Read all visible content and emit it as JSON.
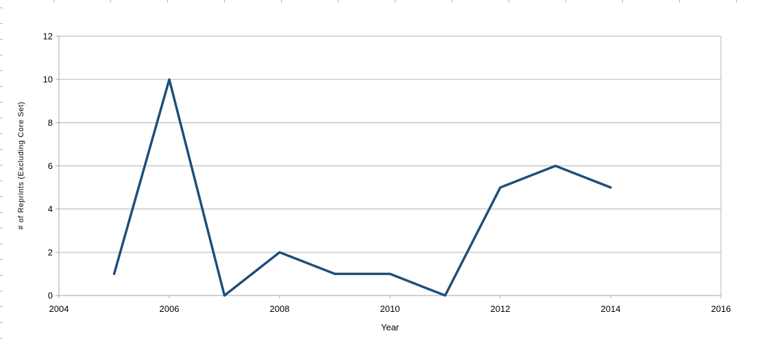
{
  "chart_data": {
    "type": "line",
    "title": "",
    "xlabel": "Year",
    "ylabel": "# of Reprints (Excluding Core Set)",
    "x": [
      2005,
      2006,
      2007,
      2008,
      2009,
      2010,
      2011,
      2012,
      2013,
      2014
    ],
    "series": [
      {
        "name": "",
        "values": [
          1,
          10,
          0,
          2,
          1,
          1,
          0,
          5,
          6,
          5
        ],
        "color": "#1f4e79"
      }
    ],
    "xlim": [
      2004,
      2016
    ],
    "ylim": [
      0,
      12
    ],
    "xticks": [
      2004,
      2006,
      2008,
      2010,
      2012,
      2014,
      2016
    ],
    "yticks": [
      0,
      2,
      4,
      6,
      8,
      10,
      12
    ],
    "grid": "horizontal-only",
    "legend": "none"
  },
  "colors": {
    "series_line": "#1f4e79",
    "gridline": "#b3b3b3",
    "axis": "#a6a6a6",
    "label_text": "#000000",
    "edge_tick": "#b5b5b5",
    "background": "#ffffff"
  }
}
